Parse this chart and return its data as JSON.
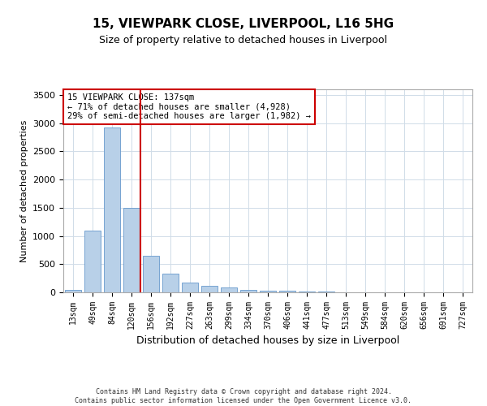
{
  "title": "15, VIEWPARK CLOSE, LIVERPOOL, L16 5HG",
  "subtitle": "Size of property relative to detached houses in Liverpool",
  "xlabel": "Distribution of detached houses by size in Liverpool",
  "ylabel": "Number of detached properties",
  "bar_color": "#b8d0e8",
  "bar_edge_color": "#6699cc",
  "grid_color": "#d0dce8",
  "background_color": "#ffffff",
  "categories": [
    "13sqm",
    "49sqm",
    "84sqm",
    "120sqm",
    "156sqm",
    "192sqm",
    "227sqm",
    "263sqm",
    "299sqm",
    "334sqm",
    "370sqm",
    "406sqm",
    "441sqm",
    "477sqm",
    "513sqm",
    "549sqm",
    "584sqm",
    "620sqm",
    "656sqm",
    "691sqm",
    "727sqm"
  ],
  "values": [
    50,
    1100,
    2920,
    1500,
    650,
    325,
    175,
    110,
    80,
    40,
    30,
    25,
    15,
    10,
    5,
    3,
    2,
    1,
    0,
    0,
    0
  ],
  "vline_color": "#cc0000",
  "annotation_text": "15 VIEWPARK CLOSE: 137sqm\n← 71% of detached houses are smaller (4,928)\n29% of semi-detached houses are larger (1,982) →",
  "annotation_box_color": "#ffffff",
  "annotation_box_edgecolor": "#cc0000",
  "ylim": [
    0,
    3600
  ],
  "yticks": [
    0,
    500,
    1000,
    1500,
    2000,
    2500,
    3000,
    3500
  ],
  "footer_line1": "Contains HM Land Registry data © Crown copyright and database right 2024.",
  "footer_line2": "Contains public sector information licensed under the Open Government Licence v3.0."
}
